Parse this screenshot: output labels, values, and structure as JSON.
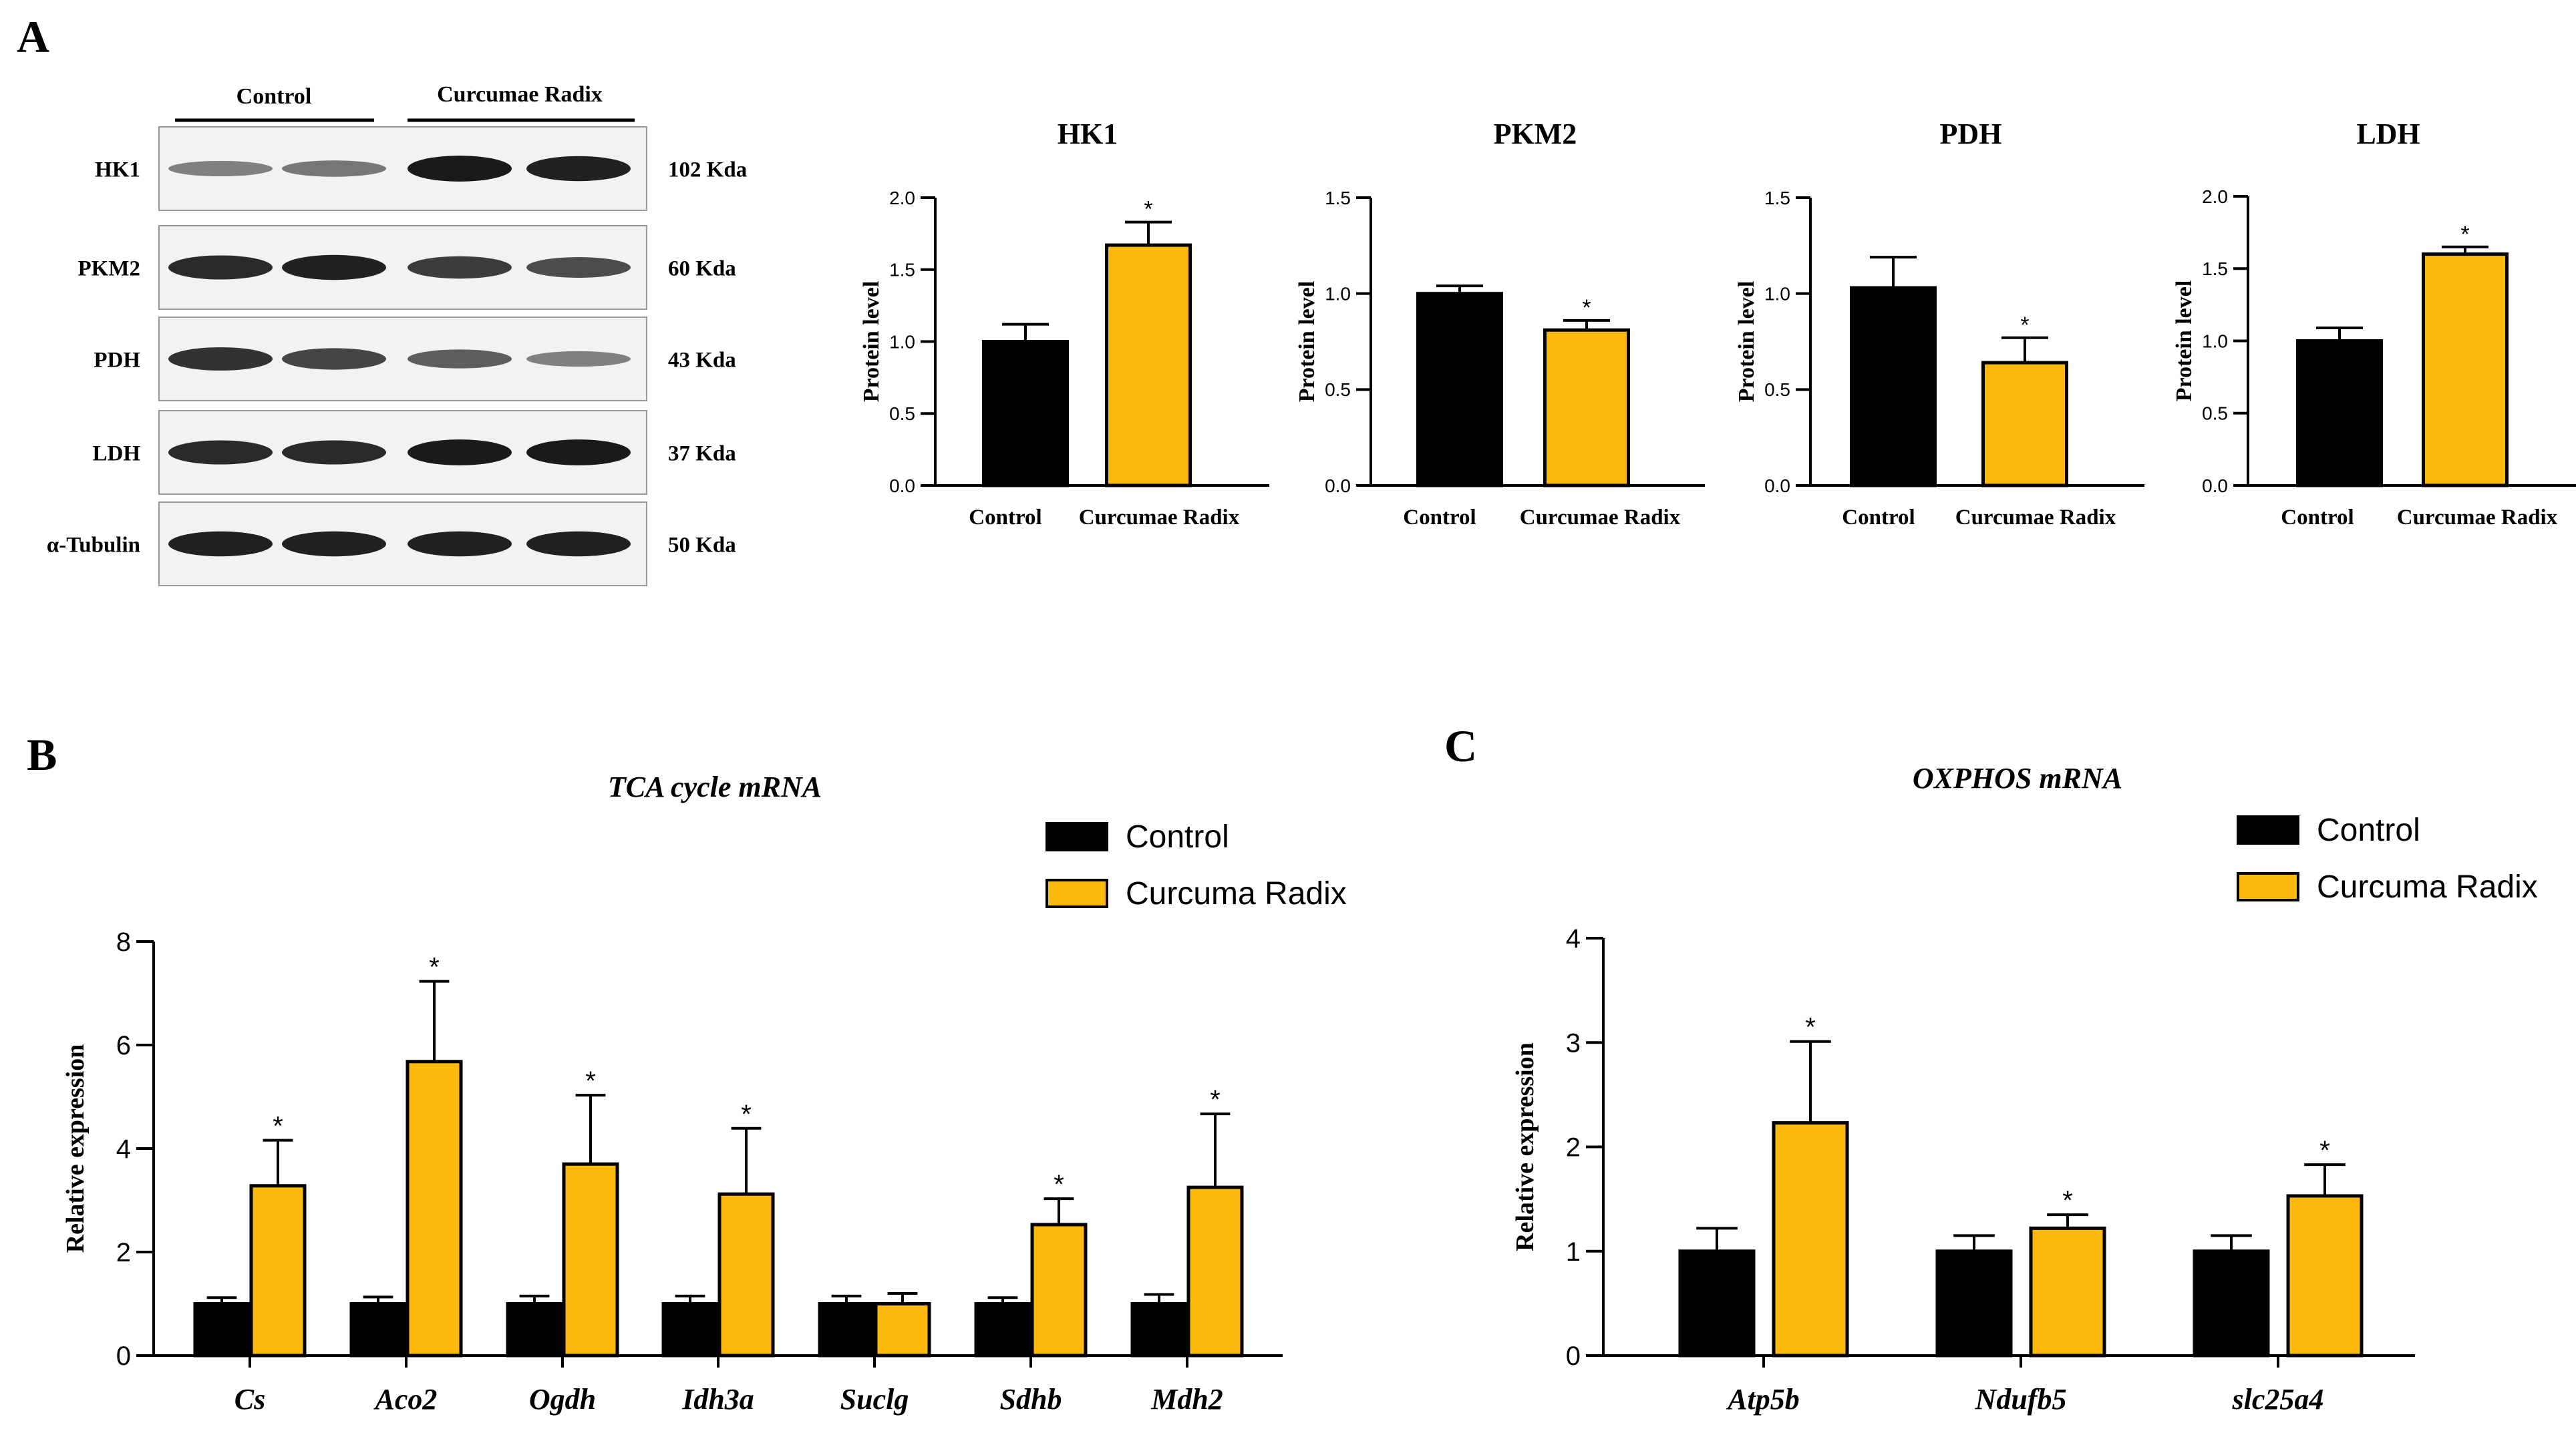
{
  "colors": {
    "control": "#000000",
    "treatment": "#FDBA0C",
    "blot_bg": "#f2f2f2",
    "band": "#111111"
  },
  "panels": {
    "a": "A",
    "b": "B",
    "c": "C"
  },
  "western": {
    "groups": [
      "Control",
      "Curcumae Radix"
    ],
    "rows": [
      {
        "protein": "HK1",
        "size": "102 Kda",
        "intensities": [
          0.35,
          0.4,
          0.95,
          0.9
        ]
      },
      {
        "protein": "PKM2",
        "size": "60 Kda",
        "intensities": [
          0.85,
          0.9,
          0.75,
          0.65
        ]
      },
      {
        "protein": "PDH",
        "size": "43 Kda",
        "intensities": [
          0.8,
          0.7,
          0.55,
          0.35
        ]
      },
      {
        "protein": "LDH",
        "size": "37 Kda",
        "intensities": [
          0.85,
          0.85,
          0.95,
          0.95
        ]
      },
      {
        "protein": "α-Tubulin",
        "size": "50 Kda",
        "intensities": [
          0.9,
          0.9,
          0.9,
          0.9
        ]
      }
    ]
  },
  "chart_data": [
    {
      "id": "hk1",
      "type": "bar",
      "title": "HK1",
      "ylabel": "Protein level",
      "categories": [
        "Control",
        "Curcumae Radix"
      ],
      "values": [
        1.0,
        1.67
      ],
      "errors": [
        0.12,
        0.16
      ],
      "significance": [
        "",
        "*"
      ],
      "ylim": [
        0,
        2.0
      ],
      "yticks": [
        0.0,
        0.5,
        1.0,
        1.5,
        2.0
      ],
      "tick_labels": [
        "0.0",
        "0.5",
        "1.0",
        "1.5",
        "2.0"
      ]
    },
    {
      "id": "pkm2",
      "type": "bar",
      "title": "PKM2",
      "ylabel": "Protein level",
      "categories": [
        "Control",
        "Curcumae Radix"
      ],
      "values": [
        1.0,
        0.81
      ],
      "errors": [
        0.04,
        0.05
      ],
      "significance": [
        "",
        "*"
      ],
      "ylim": [
        0,
        1.5
      ],
      "yticks": [
        0.0,
        0.5,
        1.0,
        1.5
      ],
      "tick_labels": [
        "0.0",
        "0.5",
        "1.0",
        "1.5"
      ]
    },
    {
      "id": "pdh",
      "type": "bar",
      "title": "PDH",
      "ylabel": "Protein level",
      "categories": [
        "Control",
        "Curcumae Radix"
      ],
      "values": [
        1.03,
        0.64
      ],
      "errors": [
        0.16,
        0.13
      ],
      "significance": [
        "",
        "*"
      ],
      "ylim": [
        0,
        1.5
      ],
      "yticks": [
        0.0,
        0.5,
        1.0,
        1.5
      ],
      "tick_labels": [
        "0.0",
        "0.5",
        "1.0",
        "1.5"
      ]
    },
    {
      "id": "ldh",
      "type": "bar",
      "title": "LDH",
      "ylabel": "Protein level",
      "categories": [
        "Control",
        "Curcumae Radix"
      ],
      "values": [
        1.0,
        1.6
      ],
      "errors": [
        0.09,
        0.05
      ],
      "significance": [
        "",
        "*"
      ],
      "ylim": [
        0,
        2.0
      ],
      "yticks": [
        0.0,
        0.5,
        1.0,
        1.5,
        2.0
      ],
      "tick_labels": [
        "0.0",
        "0.5",
        "1.0",
        "1.5",
        "2.0"
      ]
    },
    {
      "id": "tca",
      "type": "bar",
      "title": "TCA cycle mRNA",
      "ylabel": "Relative expression",
      "categories": [
        "Cs",
        "Aco2",
        "Ogdh",
        "Idh3a",
        "Suclg",
        "Sdhb",
        "Mdh2"
      ],
      "legend": [
        "Control",
        "Curcuma Radix"
      ],
      "series": [
        {
          "name": "Control",
          "values": [
            1.0,
            1.0,
            1.0,
            1.0,
            1.0,
            1.0,
            1.0
          ],
          "errors": [
            0.12,
            0.13,
            0.15,
            0.15,
            0.15,
            0.12,
            0.18
          ]
        },
        {
          "name": "Curcuma Radix",
          "values": [
            3.28,
            5.68,
            3.7,
            3.12,
            1.0,
            2.53,
            3.25
          ],
          "errors": [
            0.88,
            1.55,
            1.33,
            1.27,
            0.2,
            0.5,
            1.42
          ]
        }
      ],
      "significance": [
        "*",
        "*",
        "*",
        "*",
        "",
        "*",
        "*"
      ],
      "ylim": [
        0,
        8
      ],
      "yticks": [
        0,
        2,
        4,
        6,
        8
      ],
      "tick_labels": [
        "0",
        "2",
        "4",
        "6",
        "8"
      ]
    },
    {
      "id": "oxphos",
      "type": "bar",
      "title": "OXPHOS mRNA",
      "ylabel": "Relative expression",
      "categories": [
        "Atp5b",
        "Ndufb5",
        "slc25a4"
      ],
      "legend": [
        "Control",
        "Curcuma Radix"
      ],
      "series": [
        {
          "name": "Control",
          "values": [
            1.0,
            1.0,
            1.0
          ],
          "errors": [
            0.22,
            0.15,
            0.15
          ]
        },
        {
          "name": "Curcuma Radix",
          "values": [
            2.23,
            1.22,
            1.53
          ],
          "errors": [
            0.78,
            0.13,
            0.3
          ]
        }
      ],
      "significance": [
        "*",
        "*",
        "*"
      ],
      "ylim": [
        0,
        4
      ],
      "yticks": [
        0,
        1,
        2,
        3,
        4
      ],
      "tick_labels": [
        "0",
        "1",
        "2",
        "3",
        "4"
      ]
    }
  ]
}
